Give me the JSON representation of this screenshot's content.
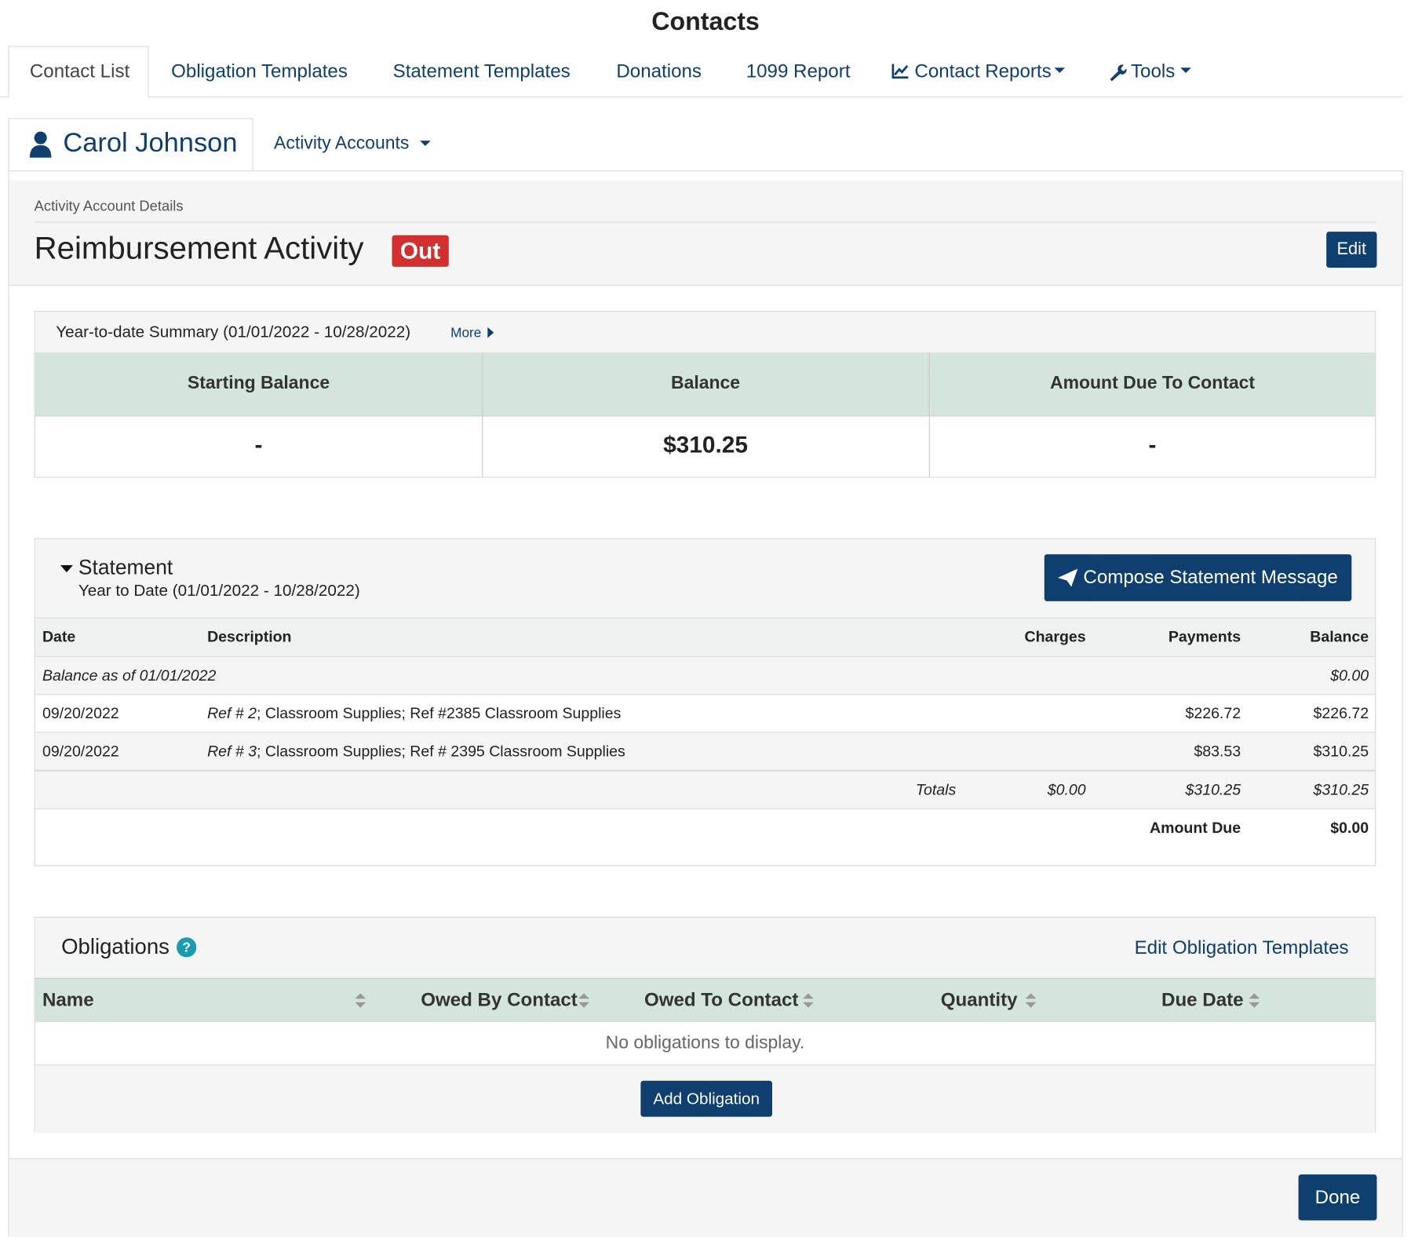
{
  "header": {
    "title": "Contacts"
  },
  "tabs": [
    "Contact List",
    "Obligation Templates",
    "Statement Templates",
    "Donations",
    "1099 Report",
    "Contact Reports",
    "Tools"
  ],
  "contact": {
    "name": "Carol Johnson",
    "menu": "Activity Accounts"
  },
  "account": {
    "breadcrumb": "Activity Account Details",
    "title": "Reimbursement Activity",
    "badge": "Out",
    "edit": "Edit"
  },
  "summary": {
    "title": "Year-to-date Summary (01/01/2022 - 10/28/2022)",
    "more": "More",
    "headers": [
      "Starting Balance",
      "Balance",
      "Amount Due To Contact"
    ],
    "values": [
      "-",
      "$310.25",
      "-"
    ]
  },
  "statement": {
    "title": "Statement",
    "period": "Year to Date (01/01/2022 - 10/28/2022)",
    "compose": "Compose Statement Message",
    "headers": [
      "Date",
      "Description",
      "Charges",
      "Payments",
      "Balance"
    ],
    "opening": {
      "label": "Balance as of 01/01/2022",
      "balance": "$0.00"
    },
    "rows": [
      {
        "date": "09/20/2022",
        "ref": "Ref # 2",
        "description": "; Classroom Supplies; Ref #2385 Classroom Supplies",
        "payments": "$226.72",
        "balance": "$226.72"
      },
      {
        "date": "09/20/2022",
        "ref": "Ref # 3",
        "description": "; Classroom Supplies; Ref # 2395 Classroom Supplies",
        "payments": "$83.53",
        "balance": "$310.25"
      }
    ],
    "totals": {
      "label": "Totals",
      "charges": "$0.00",
      "payments": "$310.25",
      "balance": "$310.25"
    },
    "amount_due": {
      "label": "Amount Due",
      "value": "$0.00"
    }
  },
  "obligations": {
    "title": "Obligations",
    "edit_link": "Edit Obligation Templates",
    "headers": [
      "Name",
      "Owed By Contact",
      "Owed To Contact",
      "Quantity",
      "Due Date"
    ],
    "empty": "No obligations to display.",
    "add": "Add Obligation"
  },
  "done": "Done"
}
